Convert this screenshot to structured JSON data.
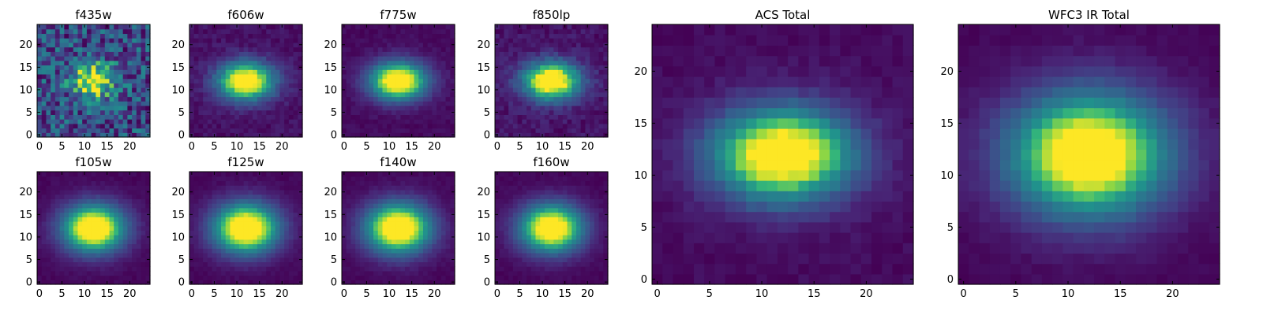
{
  "chart_data": [
    {
      "type": "heatmap",
      "title": "f435w",
      "grid_size": 25,
      "xlim": [
        -0.5,
        24.5
      ],
      "ylim": [
        -0.5,
        24.5
      ],
      "xticks": [
        0,
        5,
        10,
        15,
        20
      ],
      "yticks": [
        0,
        5,
        10,
        15,
        20
      ],
      "colormap": "viridis",
      "center": [
        12,
        12
      ],
      "sigma": [
        3.2,
        2.6
      ],
      "background": 0.35,
      "noise": 0.35
    },
    {
      "type": "heatmap",
      "title": "f606w",
      "grid_size": 25,
      "xlim": [
        -0.5,
        24.5
      ],
      "ylim": [
        -0.5,
        24.5
      ],
      "xticks": [
        0,
        5,
        10,
        15,
        20
      ],
      "yticks": [
        0,
        5,
        10,
        15,
        20
      ],
      "colormap": "viridis",
      "center": [
        12,
        12
      ],
      "sigma": [
        4.5,
        3.0
      ],
      "background": 0.03,
      "noise": 0.05
    },
    {
      "type": "heatmap",
      "title": "f775w",
      "grid_size": 25,
      "xlim": [
        -0.5,
        24.5
      ],
      "ylim": [
        -0.5,
        24.5
      ],
      "xticks": [
        0,
        5,
        10,
        15,
        20
      ],
      "yticks": [
        0,
        5,
        10,
        15,
        20
      ],
      "colormap": "viridis",
      "center": [
        12,
        12
      ],
      "sigma": [
        4.5,
        3.0
      ],
      "background": 0.02,
      "noise": 0.03
    },
    {
      "type": "heatmap",
      "title": "f850lp",
      "grid_size": 25,
      "xlim": [
        -0.5,
        24.5
      ],
      "ylim": [
        -0.5,
        24.5
      ],
      "xticks": [
        0,
        5,
        10,
        15,
        20
      ],
      "yticks": [
        0,
        5,
        10,
        15,
        20
      ],
      "colormap": "viridis",
      "center": [
        12,
        12
      ],
      "sigma": [
        4.5,
        3.0
      ],
      "background": 0.05,
      "noise": 0.06
    },
    {
      "type": "heatmap",
      "title": "f105w",
      "grid_size": 25,
      "xlim": [
        -0.5,
        24.5
      ],
      "ylim": [
        -0.5,
        24.5
      ],
      "xticks": [
        0,
        5,
        10,
        15,
        20
      ],
      "yticks": [
        0,
        5,
        10,
        15,
        20
      ],
      "colormap": "viridis",
      "center": [
        12,
        12
      ],
      "sigma": [
        5.0,
        3.8
      ],
      "background": 0.01,
      "noise": 0.02
    },
    {
      "type": "heatmap",
      "title": "f125w",
      "grid_size": 25,
      "xlim": [
        -0.5,
        24.5
      ],
      "ylim": [
        -0.5,
        24.5
      ],
      "xticks": [
        0,
        5,
        10,
        15,
        20
      ],
      "yticks": [
        0,
        5,
        10,
        15,
        20
      ],
      "colormap": "viridis",
      "center": [
        12,
        12
      ],
      "sigma": [
        5.2,
        4.0
      ],
      "background": 0.01,
      "noise": 0.02
    },
    {
      "type": "heatmap",
      "title": "f140w",
      "grid_size": 25,
      "xlim": [
        -0.5,
        24.5
      ],
      "ylim": [
        -0.5,
        24.5
      ],
      "xticks": [
        0,
        5,
        10,
        15,
        20
      ],
      "yticks": [
        0,
        5,
        10,
        15,
        20
      ],
      "colormap": "viridis",
      "center": [
        12,
        12
      ],
      "sigma": [
        5.2,
        4.0
      ],
      "background": 0.01,
      "noise": 0.02
    },
    {
      "type": "heatmap",
      "title": "f160w",
      "grid_size": 25,
      "xlim": [
        -0.5,
        24.5
      ],
      "ylim": [
        -0.5,
        24.5
      ],
      "xticks": [
        0,
        5,
        10,
        15,
        20
      ],
      "yticks": [
        0,
        5,
        10,
        15,
        20
      ],
      "colormap": "viridis",
      "center": [
        12,
        12
      ],
      "sigma": [
        5.0,
        3.8
      ],
      "background": 0.01,
      "noise": 0.02
    },
    {
      "type": "heatmap",
      "title": "ACS Total",
      "grid_size": 25,
      "xlim": [
        -0.5,
        24.5
      ],
      "ylim": [
        -0.5,
        24.5
      ],
      "xticks": [
        0,
        5,
        10,
        15,
        20
      ],
      "yticks": [
        0,
        5,
        10,
        15,
        20
      ],
      "colormap": "viridis",
      "center": [
        12,
        12
      ],
      "sigma": [
        4.8,
        3.2
      ],
      "background": 0.03,
      "noise": 0.03
    },
    {
      "type": "heatmap",
      "title": "WFC3 IR Total",
      "grid_size": 25,
      "xlim": [
        -0.5,
        24.5
      ],
      "ylim": [
        -0.5,
        24.5
      ],
      "xticks": [
        0,
        5,
        10,
        15,
        20
      ],
      "yticks": [
        0,
        5,
        10,
        15,
        20
      ],
      "colormap": "viridis",
      "center": [
        12,
        12
      ],
      "sigma": [
        5.4,
        4.2
      ],
      "background": 0.02,
      "noise": 0.02
    }
  ]
}
